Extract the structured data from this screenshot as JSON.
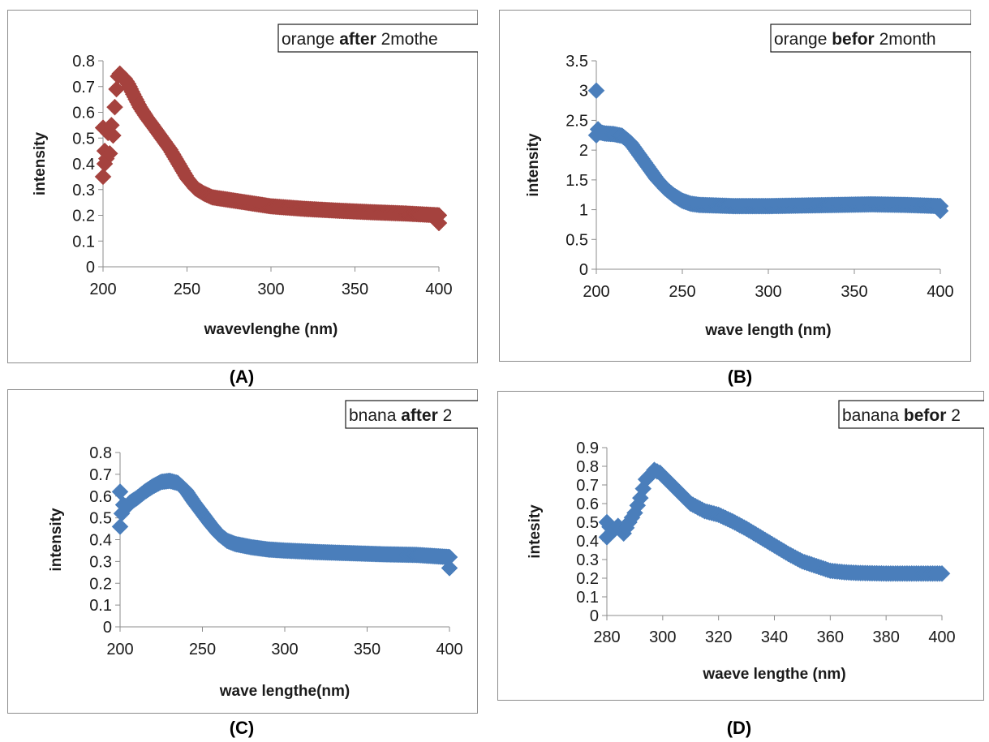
{
  "captions": [
    "(A)",
    "(B)",
    "(C)",
    "(D)"
  ],
  "chart_data": [
    {
      "type": "scatter",
      "legend": {
        "prefix": "orange ",
        "bold": "after",
        "suffix": " 2mothe"
      },
      "xlabel": "wavevlenghe (nm)",
      "ylabel": "intensity",
      "xlim": [
        200,
        400
      ],
      "ylim": [
        0,
        0.8
      ],
      "xticks": [
        200,
        250,
        300,
        350,
        400
      ],
      "yticks": [
        0,
        0.1,
        0.2,
        0.3,
        0.4,
        0.5,
        0.6,
        0.7,
        0.8
      ],
      "color": "#a5423e",
      "curve": [
        [
          200,
          0.35
        ],
        [
          200,
          0.54
        ],
        [
          201,
          0.4
        ],
        [
          201,
          0.45
        ],
        [
          202,
          0.42
        ],
        [
          203,
          0.52
        ],
        [
          204,
          0.44
        ],
        [
          205,
          0.55
        ],
        [
          206,
          0.51
        ],
        [
          207,
          0.62
        ],
        [
          208,
          0.69
        ],
        [
          209,
          0.74
        ],
        [
          210,
          0.75
        ],
        [
          211,
          0.74
        ],
        [
          213,
          0.73
        ],
        [
          215,
          0.71
        ],
        [
          218,
          0.67
        ],
        [
          222,
          0.62
        ],
        [
          226,
          0.58
        ],
        [
          230,
          0.545
        ],
        [
          235,
          0.5
        ],
        [
          240,
          0.455
        ],
        [
          245,
          0.4
        ],
        [
          250,
          0.345
        ],
        [
          255,
          0.305
        ],
        [
          260,
          0.285
        ],
        [
          265,
          0.27
        ],
        [
          270,
          0.265
        ],
        [
          280,
          0.255
        ],
        [
          290,
          0.245
        ],
        [
          300,
          0.235
        ],
        [
          320,
          0.225
        ],
        [
          340,
          0.218
        ],
        [
          360,
          0.212
        ],
        [
          380,
          0.207
        ],
        [
          400,
          0.2
        ]
      ],
      "extra_points": [
        [
          400,
          0.17
        ]
      ]
    },
    {
      "type": "scatter",
      "legend": {
        "prefix": "orange ",
        "bold": "befor",
        "suffix": " 2month"
      },
      "xlabel": "wave length (nm)",
      "ylabel": "intensity",
      "xlim": [
        200,
        400
      ],
      "ylim": [
        0,
        3.5
      ],
      "xticks": [
        200,
        250,
        300,
        350,
        400
      ],
      "yticks": [
        0,
        0.5,
        1,
        1.5,
        2,
        2.5,
        3,
        3.5
      ],
      "color": "#4a7ebb",
      "curve": [
        [
          200,
          3.0
        ],
        [
          200,
          2.25
        ],
        [
          201,
          2.35
        ],
        [
          202,
          2.3
        ],
        [
          205,
          2.28
        ],
        [
          210,
          2.27
        ],
        [
          215,
          2.24
        ],
        [
          220,
          2.12
        ],
        [
          225,
          1.92
        ],
        [
          230,
          1.72
        ],
        [
          235,
          1.52
        ],
        [
          240,
          1.36
        ],
        [
          245,
          1.24
        ],
        [
          250,
          1.15
        ],
        [
          255,
          1.1
        ],
        [
          260,
          1.08
        ],
        [
          270,
          1.07
        ],
        [
          280,
          1.06
        ],
        [
          300,
          1.06
        ],
        [
          320,
          1.07
        ],
        [
          340,
          1.08
        ],
        [
          360,
          1.09
        ],
        [
          380,
          1.08
        ],
        [
          400,
          1.06
        ]
      ],
      "extra_points": [
        [
          400,
          0.98
        ]
      ]
    },
    {
      "type": "scatter",
      "legend": {
        "prefix": "bnana ",
        "bold": "after",
        "suffix": " 2"
      },
      "xlabel": "wave lengthe(nm)",
      "ylabel": "intensity",
      "xlim": [
        200,
        400
      ],
      "ylim": [
        0,
        0.8
      ],
      "xticks": [
        200,
        250,
        300,
        350,
        400
      ],
      "yticks": [
        0,
        0.1,
        0.2,
        0.3,
        0.4,
        0.5,
        0.6,
        0.7,
        0.8
      ],
      "color": "#4a7ebb",
      "curve": [
        [
          200,
          0.62
        ],
        [
          200,
          0.46
        ],
        [
          201,
          0.52
        ],
        [
          202,
          0.56
        ],
        [
          204,
          0.55
        ],
        [
          206,
          0.57
        ],
        [
          210,
          0.59
        ],
        [
          215,
          0.62
        ],
        [
          220,
          0.645
        ],
        [
          225,
          0.665
        ],
        [
          230,
          0.67
        ],
        [
          235,
          0.66
        ],
        [
          240,
          0.625
        ],
        [
          245,
          0.57
        ],
        [
          250,
          0.52
        ],
        [
          255,
          0.47
        ],
        [
          260,
          0.425
        ],
        [
          265,
          0.395
        ],
        [
          270,
          0.38
        ],
        [
          280,
          0.365
        ],
        [
          290,
          0.355
        ],
        [
          300,
          0.35
        ],
        [
          320,
          0.343
        ],
        [
          340,
          0.338
        ],
        [
          360,
          0.333
        ],
        [
          380,
          0.33
        ],
        [
          400,
          0.32
        ]
      ],
      "extra_points": [
        [
          400,
          0.27
        ]
      ]
    },
    {
      "type": "scatter",
      "legend": {
        "prefix": "banana ",
        "bold": "befor",
        "suffix": " 2"
      },
      "xlabel": "waeve lengthe (nm)",
      "ylabel": "intesity",
      "xlim": [
        280,
        400
      ],
      "ylim": [
        0,
        0.9
      ],
      "xticks": [
        280,
        300,
        320,
        340,
        360,
        380,
        400
      ],
      "yticks": [
        0,
        0.1,
        0.2,
        0.3,
        0.4,
        0.5,
        0.6,
        0.7,
        0.8,
        0.9
      ],
      "color": "#4a7ebb",
      "curve": [
        [
          280,
          0.42
        ],
        [
          280,
          0.5
        ],
        [
          282,
          0.45
        ],
        [
          284,
          0.48
        ],
        [
          286,
          0.44
        ],
        [
          288,
          0.5
        ],
        [
          290,
          0.55
        ],
        [
          292,
          0.63
        ],
        [
          294,
          0.73
        ],
        [
          296,
          0.76
        ],
        [
          297,
          0.78
        ],
        [
          299,
          0.765
        ],
        [
          302,
          0.72
        ],
        [
          306,
          0.66
        ],
        [
          310,
          0.6
        ],
        [
          315,
          0.56
        ],
        [
          320,
          0.54
        ],
        [
          325,
          0.505
        ],
        [
          330,
          0.465
        ],
        [
          335,
          0.42
        ],
        [
          340,
          0.375
        ],
        [
          345,
          0.33
        ],
        [
          350,
          0.29
        ],
        [
          355,
          0.265
        ],
        [
          360,
          0.24
        ],
        [
          365,
          0.232
        ],
        [
          370,
          0.228
        ],
        [
          380,
          0.225
        ],
        [
          390,
          0.225
        ],
        [
          400,
          0.225
        ]
      ],
      "extra_points": []
    }
  ]
}
